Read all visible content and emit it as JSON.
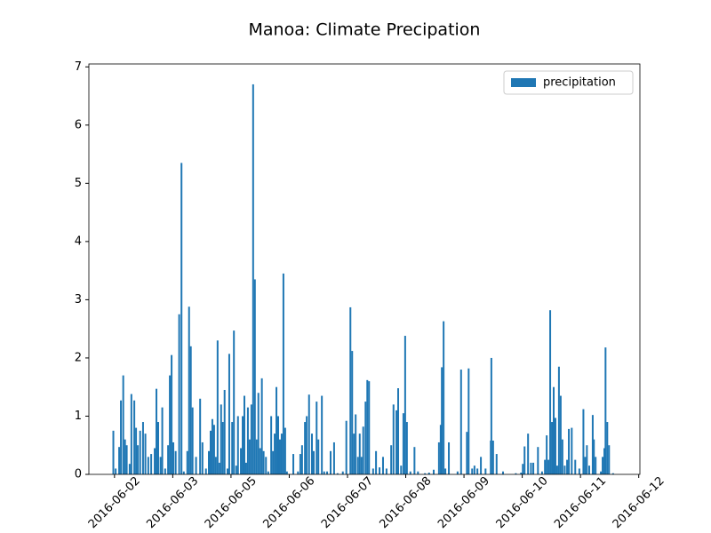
{
  "chart_data": {
    "type": "bar",
    "title": "Manoa: Climate Precipation",
    "series": [
      {
        "name": "precipitation",
        "color": "#1f77b4",
        "x": [
          -0.02,
          0.02,
          0.08,
          0.11,
          0.15,
          0.18,
          0.21,
          0.26,
          0.29,
          0.34,
          0.37,
          0.4,
          0.44,
          0.49,
          0.53,
          0.58,
          0.63,
          0.69,
          0.72,
          0.75,
          0.79,
          0.82,
          0.87,
          0.92,
          0.95,
          0.98,
          1.01,
          1.05,
          1.11,
          1.15,
          1.19,
          1.25,
          1.28,
          1.31,
          1.34,
          1.4,
          1.47,
          1.51,
          1.57,
          1.62,
          1.65,
          1.68,
          1.71,
          1.74,
          1.77,
          1.8,
          1.83,
          1.86,
          1.89,
          1.94,
          1.97,
          2.02,
          2.05,
          2.09,
          2.12,
          2.17,
          2.2,
          2.23,
          2.26,
          2.29,
          2.32,
          2.35,
          2.38,
          2.41,
          2.44,
          2.47,
          2.5,
          2.53,
          2.56,
          2.6,
          2.64,
          2.69,
          2.72,
          2.75,
          2.78,
          2.81,
          2.84,
          2.87,
          2.9,
          2.93,
          2.96,
          3.07,
          3.15,
          3.19,
          3.22,
          3.27,
          3.3,
          3.34,
          3.39,
          3.42,
          3.47,
          3.5,
          3.56,
          3.6,
          3.65,
          3.71,
          3.77,
          3.83,
          3.92,
          3.98,
          4.05,
          4.08,
          4.11,
          4.14,
          4.18,
          4.21,
          4.24,
          4.27,
          4.31,
          4.34,
          4.37,
          4.44,
          4.49,
          4.55,
          4.61,
          4.67,
          4.75,
          4.79,
          4.84,
          4.87,
          4.92,
          4.96,
          4.99,
          5.02,
          5.08,
          5.15,
          5.21,
          5.33,
          5.4,
          5.48,
          5.57,
          5.6,
          5.62,
          5.65,
          5.68,
          5.74,
          5.89,
          5.95,
          6.05,
          6.08,
          6.14,
          6.18,
          6.23,
          6.29,
          6.37,
          6.46,
          6.47,
          6.5,
          6.56,
          6.67,
          6.89,
          6.98,
          7.01,
          7.04,
          7.1,
          7.15,
          7.19,
          7.27,
          7.34,
          7.39,
          7.42,
          7.45,
          7.48,
          7.51,
          7.54,
          7.57,
          7.6,
          7.63,
          7.66,
          7.69,
          7.73,
          7.77,
          7.8,
          7.85,
          7.91,
          7.98,
          8.05,
          8.08,
          8.11,
          8.15,
          8.21,
          8.23,
          8.26,
          8.35,
          8.38,
          8.41,
          8.43,
          8.46,
          8.49,
          8.56
        ],
        "values": [
          0.75,
          0.1,
          0.47,
          1.27,
          1.7,
          0.6,
          0.5,
          0.18,
          1.38,
          1.27,
          0.8,
          0.5,
          0.75,
          0.9,
          0.7,
          0.3,
          0.35,
          0.45,
          1.47,
          0.9,
          0.3,
          1.15,
          0.1,
          0.5,
          1.7,
          2.05,
          0.55,
          0.4,
          2.75,
          5.35,
          0.05,
          0.4,
          2.88,
          2.2,
          1.15,
          0.3,
          1.3,
          0.55,
          0.1,
          0.4,
          0.75,
          0.95,
          0.85,
          0.3,
          2.3,
          0.2,
          1.2,
          0.9,
          1.45,
          0.1,
          2.07,
          0.9,
          2.47,
          0.15,
          1.0,
          0.45,
          1.0,
          1.35,
          0.2,
          1.15,
          0.6,
          1.2,
          6.7,
          3.35,
          0.6,
          1.4,
          0.45,
          1.65,
          0.4,
          0.3,
          0.05,
          1.0,
          0.4,
          0.7,
          1.5,
          1.0,
          0.6,
          0.7,
          3.45,
          0.8,
          0.05,
          0.35,
          0.05,
          0.35,
          0.5,
          0.9,
          1.0,
          1.37,
          0.7,
          0.4,
          1.25,
          0.6,
          1.35,
          0.05,
          0.05,
          0.4,
          0.55,
          0.02,
          0.05,
          0.92,
          2.87,
          2.12,
          0.7,
          1.03,
          0.3,
          0.7,
          0.3,
          0.82,
          1.25,
          1.62,
          1.6,
          0.1,
          0.4,
          0.12,
          0.3,
          0.1,
          0.5,
          1.2,
          1.1,
          1.48,
          0.15,
          1.05,
          2.38,
          0.9,
          0.05,
          0.47,
          0.05,
          0.02,
          0.03,
          0.08,
          0.55,
          0.85,
          1.84,
          2.63,
          0.1,
          0.55,
          0.05,
          1.8,
          0.73,
          1.82,
          0.1,
          0.15,
          0.1,
          0.3,
          0.1,
          0.58,
          2.0,
          0.58,
          0.35,
          0.05,
          0.02,
          0.03,
          0.18,
          0.48,
          0.7,
          0.2,
          0.2,
          0.47,
          0.05,
          0.25,
          0.67,
          0.25,
          2.82,
          0.9,
          1.5,
          0.97,
          0.15,
          1.85,
          1.35,
          0.6,
          0.15,
          0.25,
          0.78,
          0.8,
          0.25,
          0.1,
          1.12,
          0.3,
          0.5,
          0.15,
          1.02,
          0.6,
          0.3,
          0.05,
          0.3,
          0.45,
          2.18,
          0.9,
          0.5,
          0.02
        ]
      }
    ],
    "xlim": [
      -0.44,
      9.02
    ],
    "xticks": [
      {
        "value": 0,
        "label": "2016-06-02"
      },
      {
        "value": 1,
        "label": "2016-06-03"
      },
      {
        "value": 2,
        "label": "2016-06-05"
      },
      {
        "value": 3,
        "label": "2016-06-06"
      },
      {
        "value": 4,
        "label": "2016-06-07"
      },
      {
        "value": 5,
        "label": "2016-06-08"
      },
      {
        "value": 6,
        "label": "2016-06-09"
      },
      {
        "value": 7,
        "label": "2016-06-10"
      },
      {
        "value": 8,
        "label": "2016-06-11"
      },
      {
        "value": 9,
        "label": "2016-06-12"
      }
    ],
    "ylim": [
      0,
      7.05
    ],
    "yticks": [
      0,
      1,
      2,
      3,
      4,
      5,
      6,
      7
    ],
    "legend": "upper right"
  }
}
